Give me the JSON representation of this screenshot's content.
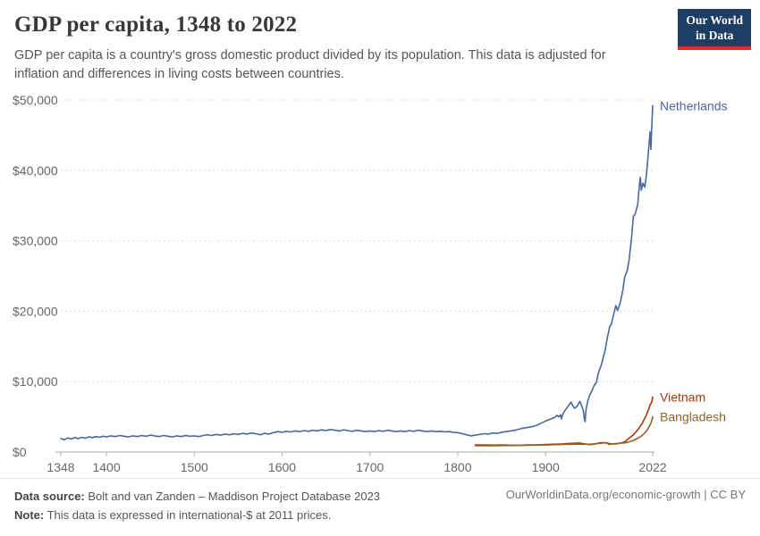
{
  "header": {
    "title": "GDP per capita, 1348 to 2022",
    "subtitle": "GDP per capita is a country's gross domestic product divided by its population. This data is adjusted for inflation and differences in living costs between countries.",
    "logo": {
      "line1": "Our World",
      "line2": "in Data"
    }
  },
  "footer": {
    "source_label": "Data source:",
    "source_text": " Bolt and van Zanden – Maddison Project Database 2023",
    "note_label": "Note:",
    "note_text": " This data is expressed in international-$ at 2011 prices.",
    "link_text": "OurWorldinData.org/economic-growth | CC BY"
  },
  "chart_data": {
    "type": "line",
    "title": "GDP per capita, 1348 to 2022",
    "xlabel": "",
    "ylabel": "",
    "xlim": [
      1348,
      2022
    ],
    "ylim": [
      0,
      50000
    ],
    "x_ticks": [
      1348,
      1400,
      1500,
      1600,
      1700,
      1800,
      1900,
      2022
    ],
    "y_ticks": [
      0,
      10000,
      20000,
      30000,
      40000,
      50000
    ],
    "y_tick_labels": [
      "$0",
      "$10,000",
      "$20,000",
      "$30,000",
      "$40,000",
      "$50,000"
    ],
    "grid": "dashed-horizontal",
    "legend_position": "line-end-labels",
    "colors": {
      "axis_text": "#666666",
      "gridline": "#dcdcdc",
      "zero_line": "#a8a8a8"
    },
    "series": [
      {
        "name": "Netherlands",
        "color": "#4a689b",
        "points": [
          [
            1348,
            1900
          ],
          [
            1352,
            1750
          ],
          [
            1356,
            2000
          ],
          [
            1360,
            1850
          ],
          [
            1364,
            2050
          ],
          [
            1368,
            1900
          ],
          [
            1372,
            2100
          ],
          [
            1376,
            1950
          ],
          [
            1380,
            2150
          ],
          [
            1384,
            2050
          ],
          [
            1388,
            2200
          ],
          [
            1392,
            2100
          ],
          [
            1396,
            2250
          ],
          [
            1400,
            2150
          ],
          [
            1405,
            2300
          ],
          [
            1410,
            2200
          ],
          [
            1415,
            2350
          ],
          [
            1420,
            2250
          ],
          [
            1425,
            2150
          ],
          [
            1430,
            2300
          ],
          [
            1435,
            2200
          ],
          [
            1440,
            2350
          ],
          [
            1445,
            2250
          ],
          [
            1450,
            2400
          ],
          [
            1455,
            2300
          ],
          [
            1460,
            2200
          ],
          [
            1465,
            2350
          ],
          [
            1470,
            2250
          ],
          [
            1475,
            2150
          ],
          [
            1480,
            2300
          ],
          [
            1485,
            2200
          ],
          [
            1490,
            2350
          ],
          [
            1495,
            2250
          ],
          [
            1500,
            2300
          ],
          [
            1505,
            2200
          ],
          [
            1510,
            2350
          ],
          [
            1515,
            2450
          ],
          [
            1520,
            2350
          ],
          [
            1525,
            2500
          ],
          [
            1530,
            2400
          ],
          [
            1535,
            2550
          ],
          [
            1540,
            2450
          ],
          [
            1545,
            2600
          ],
          [
            1550,
            2500
          ],
          [
            1555,
            2650
          ],
          [
            1560,
            2550
          ],
          [
            1565,
            2700
          ],
          [
            1570,
            2600
          ],
          [
            1575,
            2450
          ],
          [
            1580,
            2650
          ],
          [
            1585,
            2550
          ],
          [
            1590,
            2750
          ],
          [
            1595,
            2900
          ],
          [
            1600,
            2800
          ],
          [
            1605,
            2950
          ],
          [
            1610,
            2850
          ],
          [
            1615,
            3000
          ],
          [
            1620,
            2900
          ],
          [
            1625,
            3050
          ],
          [
            1630,
            2950
          ],
          [
            1635,
            3100
          ],
          [
            1640,
            3000
          ],
          [
            1645,
            3150
          ],
          [
            1650,
            3050
          ],
          [
            1655,
            3200
          ],
          [
            1660,
            3100
          ],
          [
            1665,
            3000
          ],
          [
            1670,
            3150
          ],
          [
            1675,
            3050
          ],
          [
            1680,
            2950
          ],
          [
            1685,
            3100
          ],
          [
            1690,
            3000
          ],
          [
            1695,
            2900
          ],
          [
            1700,
            3000
          ],
          [
            1705,
            2900
          ],
          [
            1710,
            3050
          ],
          [
            1715,
            2950
          ],
          [
            1720,
            3100
          ],
          [
            1725,
            3000
          ],
          [
            1730,
            2900
          ],
          [
            1735,
            3000
          ],
          [
            1740,
            2900
          ],
          [
            1745,
            3050
          ],
          [
            1750,
            2950
          ],
          [
            1755,
            3100
          ],
          [
            1760,
            3000
          ],
          [
            1765,
            2900
          ],
          [
            1770,
            3000
          ],
          [
            1775,
            2900
          ],
          [
            1780,
            2950
          ],
          [
            1785,
            2850
          ],
          [
            1790,
            2900
          ],
          [
            1795,
            2800
          ],
          [
            1800,
            2750
          ],
          [
            1805,
            2600
          ],
          [
            1810,
            2450
          ],
          [
            1815,
            2300
          ],
          [
            1820,
            2400
          ],
          [
            1825,
            2500
          ],
          [
            1830,
            2600
          ],
          [
            1835,
            2550
          ],
          [
            1840,
            2700
          ],
          [
            1845,
            2650
          ],
          [
            1850,
            2800
          ],
          [
            1855,
            2900
          ],
          [
            1860,
            3000
          ],
          [
            1865,
            3100
          ],
          [
            1870,
            3250
          ],
          [
            1875,
            3400
          ],
          [
            1880,
            3500
          ],
          [
            1885,
            3600
          ],
          [
            1890,
            3800
          ],
          [
            1895,
            4100
          ],
          [
            1900,
            4400
          ],
          [
            1905,
            4650
          ],
          [
            1910,
            4900
          ],
          [
            1913,
            5200
          ],
          [
            1915,
            5000
          ],
          [
            1917,
            5300
          ],
          [
            1918,
            4700
          ],
          [
            1920,
            5500
          ],
          [
            1922,
            5900
          ],
          [
            1925,
            6400
          ],
          [
            1929,
            7100
          ],
          [
            1931,
            6600
          ],
          [
            1933,
            6200
          ],
          [
            1936,
            6500
          ],
          [
            1939,
            7200
          ],
          [
            1941,
            6600
          ],
          [
            1943,
            5900
          ],
          [
            1944,
            4800
          ],
          [
            1945,
            4300
          ],
          [
            1946,
            6000
          ],
          [
            1948,
            7200
          ],
          [
            1950,
            8000
          ],
          [
            1953,
            8700
          ],
          [
            1955,
            9400
          ],
          [
            1958,
            9900
          ],
          [
            1960,
            11200
          ],
          [
            1963,
            12200
          ],
          [
            1965,
            13100
          ],
          [
            1968,
            14600
          ],
          [
            1970,
            16000
          ],
          [
            1973,
            17800
          ],
          [
            1975,
            18200
          ],
          [
            1978,
            19800
          ],
          [
            1980,
            20800
          ],
          [
            1982,
            20100
          ],
          [
            1985,
            21200
          ],
          [
            1988,
            23000
          ],
          [
            1990,
            24800
          ],
          [
            1993,
            25800
          ],
          [
            1995,
            27200
          ],
          [
            1998,
            30500
          ],
          [
            2000,
            33500
          ],
          [
            2002,
            33800
          ],
          [
            2005,
            35200
          ],
          [
            2007,
            38200
          ],
          [
            2008,
            39000
          ],
          [
            2009,
            37200
          ],
          [
            2011,
            38200
          ],
          [
            2013,
            37600
          ],
          [
            2015,
            39500
          ],
          [
            2017,
            42500
          ],
          [
            2019,
            45500
          ],
          [
            2020,
            43000
          ],
          [
            2021,
            46500
          ],
          [
            2022,
            49200
          ]
        ]
      },
      {
        "name": "Vietnam",
        "color": "#b13507",
        "points": [
          [
            1820,
            1000
          ],
          [
            1830,
            1000
          ],
          [
            1840,
            980
          ],
          [
            1850,
            1000
          ],
          [
            1860,
            970
          ],
          [
            1870,
            950
          ],
          [
            1880,
            1000
          ],
          [
            1890,
            1020
          ],
          [
            1900,
            1060
          ],
          [
            1913,
            1120
          ],
          [
            1920,
            1150
          ],
          [
            1929,
            1230
          ],
          [
            1938,
            1280
          ],
          [
            1950,
            1050
          ],
          [
            1955,
            1100
          ],
          [
            1960,
            1250
          ],
          [
            1965,
            1350
          ],
          [
            1970,
            1250
          ],
          [
            1975,
            1150
          ],
          [
            1980,
            1150
          ],
          [
            1985,
            1250
          ],
          [
            1990,
            1450
          ],
          [
            1995,
            1950
          ],
          [
            2000,
            2450
          ],
          [
            2005,
            3150
          ],
          [
            2010,
            4050
          ],
          [
            2015,
            5300
          ],
          [
            2018,
            6300
          ],
          [
            2019,
            6700
          ],
          [
            2020,
            6900
          ],
          [
            2021,
            7100
          ],
          [
            2022,
            7800
          ]
        ]
      },
      {
        "name": "Bangladesh",
        "color": "#8d6427",
        "points": [
          [
            1820,
            900
          ],
          [
            1840,
            900
          ],
          [
            1860,
            930
          ],
          [
            1880,
            960
          ],
          [
            1900,
            1000
          ],
          [
            1913,
            1050
          ],
          [
            1929,
            1100
          ],
          [
            1938,
            1120
          ],
          [
            1950,
            1100
          ],
          [
            1960,
            1200
          ],
          [
            1970,
            1350
          ],
          [
            1972,
            1050
          ],
          [
            1975,
            1150
          ],
          [
            1980,
            1200
          ],
          [
            1985,
            1250
          ],
          [
            1990,
            1300
          ],
          [
            1995,
            1450
          ],
          [
            2000,
            1650
          ],
          [
            2005,
            1950
          ],
          [
            2010,
            2350
          ],
          [
            2015,
            3000
          ],
          [
            2018,
            3600
          ],
          [
            2020,
            4100
          ],
          [
            2021,
            4500
          ],
          [
            2022,
            5000
          ]
        ]
      }
    ]
  }
}
